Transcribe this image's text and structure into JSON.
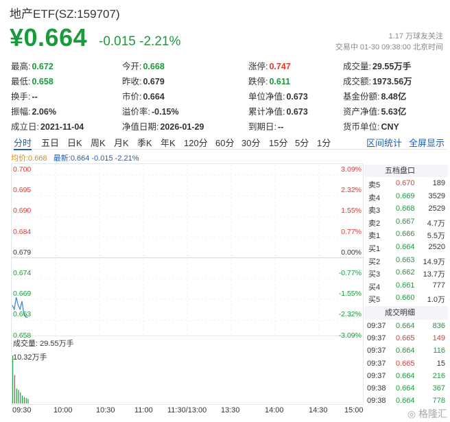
{
  "header": {
    "title": "地产ETF(SZ:159707)",
    "price": "¥0.664",
    "change": "-0.015 -2.21%",
    "follow": "1.17 万球友关注",
    "timeinfo": "交易中 01-30 09:38:00 北京时间"
  },
  "stats": {
    "rows": [
      [
        {
          "label": "最高:",
          "value": "0.672",
          "color": "green"
        },
        {
          "label": "今开:",
          "value": "0.668",
          "color": "green"
        },
        {
          "label": "涨停:",
          "value": "0.747",
          "color": "red"
        },
        {
          "label": "成交量:",
          "value": "29.55万手",
          "color": "black"
        }
      ],
      [
        {
          "label": "最低:",
          "value": "0.658",
          "color": "green"
        },
        {
          "label": "昨收:",
          "value": "0.679",
          "color": "black"
        },
        {
          "label": "跌停:",
          "value": "0.611",
          "color": "green"
        },
        {
          "label": "成交额:",
          "value": "1973.56万",
          "color": "black"
        }
      ],
      [
        {
          "label": "换手:",
          "value": "--",
          "color": "black"
        },
        {
          "label": "市价:",
          "value": "0.664",
          "color": "black"
        },
        {
          "label": "单位净值:",
          "value": "0.673",
          "color": "black"
        },
        {
          "label": "基金份额:",
          "value": "8.48亿",
          "color": "black"
        }
      ],
      [
        {
          "label": "振幅:",
          "value": "2.06%",
          "color": "black"
        },
        {
          "label": "溢价率:",
          "value": "-0.15%",
          "color": "black"
        },
        {
          "label": "累计净值:",
          "value": "0.673",
          "color": "black"
        },
        {
          "label": "资产净值:",
          "value": "5.63亿",
          "color": "black"
        }
      ],
      [
        {
          "label": "成立日:",
          "value": "2021-11-04",
          "color": "black"
        },
        {
          "label": "净值日期:",
          "value": "2026-01-29",
          "color": "black"
        },
        {
          "label": "到期日:",
          "value": "--",
          "color": "black"
        },
        {
          "label": "货币单位:",
          "value": "CNY",
          "color": "black"
        }
      ]
    ]
  },
  "tabs": [
    "分时",
    "五日",
    "日K",
    "周K",
    "月K",
    "季K",
    "年K",
    "120分",
    "60分",
    "30分",
    "15分",
    "5分",
    "1分"
  ],
  "tabs_right": [
    "区间统计",
    "全屏显示"
  ],
  "legend": {
    "avg": "均价:0.668",
    "latest": "最新:0.664 -0.015 -2.21%"
  },
  "price_axis": {
    "left": [
      "0.700",
      "0.695",
      "0.690",
      "0.684",
      "0.679",
      "0.674",
      "0.669",
      "0.663",
      "0.658"
    ],
    "right": [
      "3.09%",
      "2.32%",
      "1.55%",
      "0.77%",
      "0.00%",
      "-0.77%",
      "-1.55%",
      "-2.32%",
      "-3.09%"
    ]
  },
  "volume": {
    "label": "成交量: 29.55万手",
    "max_label": "10.32万手"
  },
  "time_axis": [
    "09:30",
    "10:00",
    "10:30",
    "11:00",
    "11:30/13:00",
    "13:30",
    "14:00",
    "14:30",
    "15:00"
  ],
  "intraday_prices": [
    0.667,
    0.666,
    0.669,
    0.667,
    0.666,
    0.668,
    0.665,
    0.664,
    0.664
  ],
  "volume_bars": [
    10.32,
    6.1,
    3.2,
    2.9,
    2.4,
    1.7,
    1.4,
    1.2,
    1.0
  ],
  "orderbook": {
    "title": "五档盘口",
    "rows": [
      {
        "side": "卖5",
        "price": "0.670",
        "vol": "189",
        "color": "red"
      },
      {
        "side": "卖4",
        "price": "0.669",
        "vol": "3529",
        "color": "green"
      },
      {
        "side": "卖3",
        "price": "0.668",
        "vol": "2529",
        "color": "green"
      },
      {
        "side": "卖2",
        "price": "0.667",
        "vol": "4.7万",
        "color": "green"
      },
      {
        "side": "卖1",
        "price": "0.666",
        "vol": "5.5万",
        "color": "green"
      },
      {
        "side": "买1",
        "price": "0.664",
        "vol": "2520",
        "color": "green"
      },
      {
        "side": "买2",
        "price": "0.663",
        "vol": "14.9万",
        "color": "green"
      },
      {
        "side": "买3",
        "price": "0.662",
        "vol": "13.7万",
        "color": "green"
      },
      {
        "side": "买4",
        "price": "0.661",
        "vol": "777",
        "color": "green"
      },
      {
        "side": "买5",
        "price": "0.660",
        "vol": "1.0万",
        "color": "green"
      }
    ]
  },
  "deals": {
    "title": "成交明细",
    "rows": [
      {
        "time": "09:37",
        "price": "0.664",
        "vol": "836",
        "vcolor": "green"
      },
      {
        "time": "09:37",
        "price": "0.665",
        "vol": "149",
        "vcolor": "red"
      },
      {
        "time": "09:37",
        "price": "0.664",
        "vol": "116",
        "vcolor": "green"
      },
      {
        "time": "09:37",
        "price": "0.665",
        "vol": "15",
        "vcolor": "black"
      },
      {
        "time": "09:37",
        "price": "0.664",
        "vol": "216",
        "vcolor": "green"
      },
      {
        "time": "09:38",
        "price": "0.664",
        "vol": "367",
        "vcolor": "green"
      },
      {
        "time": "09:38",
        "price": "0.664",
        "vol": "778",
        "vcolor": "green"
      }
    ]
  },
  "watermark": "格隆汇",
  "colors": {
    "up": "#e03a2f",
    "down": "#1a9a3a",
    "accent": "#1a5fb4",
    "line": "#3a7bd5",
    "avg": "#e08a00"
  }
}
